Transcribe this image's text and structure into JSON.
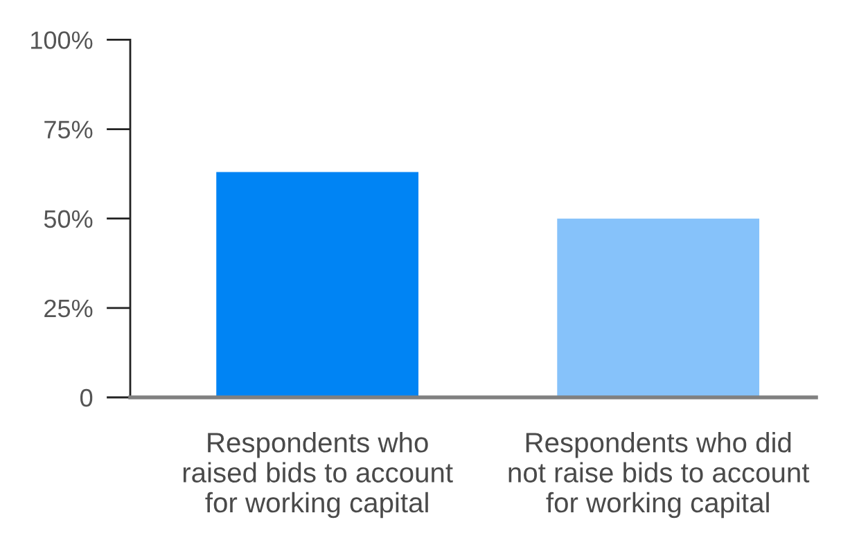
{
  "chart_data": {
    "type": "bar",
    "categories": [
      "Respondents who\nraised bids to account\nfor working capital",
      "Respondents who did\nnot raise bids to account\nfor working capital"
    ],
    "values": [
      63,
      50
    ],
    "colors": [
      "#0084f4",
      "#86c2fa"
    ],
    "ylim": [
      0,
      100
    ],
    "yticks": [
      0,
      {
        "value": 25,
        "label": "25%"
      },
      {
        "value": 50,
        "label": "50%"
      },
      {
        "value": 75,
        "label": "75%"
      },
      {
        "value": 100,
        "label": "100%"
      }
    ]
  }
}
